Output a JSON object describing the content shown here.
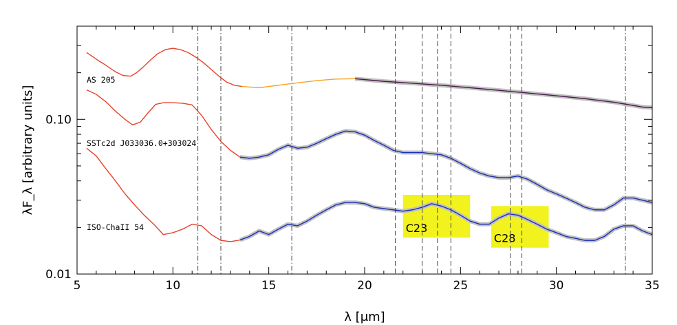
{
  "chart_data": {
    "type": "line",
    "xlabel": "λ [μm]",
    "ylabel": "λF_λ [arbitrary units]",
    "xlim": [
      5,
      35
    ],
    "ylim": [
      0.01,
      0.4
    ],
    "yscale": "log",
    "x_ticks": [
      "5",
      "10",
      "15",
      "20",
      "25",
      "30",
      "35"
    ],
    "y_ticks": [
      "0.01",
      "0.10"
    ],
    "grid": false,
    "series": [
      {
        "name": "AS 205",
        "segments": [
          {
            "color": "#e8412a",
            "x": [
              5.5,
              5.8,
              6.1,
              6.4,
              6.7,
              7.0,
              7.4,
              7.8,
              8.1,
              8.4,
              8.8,
              9.2,
              9.6,
              10.0,
              10.4,
              10.8,
              11.2,
              11.6,
              12.0,
              12.4,
              12.8,
              13.2,
              13.6
            ],
            "y": [
              0.27,
              0.255,
              0.24,
              0.228,
              0.215,
              0.203,
              0.192,
              0.19,
              0.2,
              0.215,
              0.24,
              0.265,
              0.282,
              0.288,
              0.282,
              0.27,
              0.252,
              0.232,
              0.21,
              0.19,
              0.174,
              0.166,
              0.163
            ]
          },
          {
            "color": "#f2a51e",
            "x": [
              13.6,
              14.5,
              15.5,
              16.5,
              17.5,
              18.5,
              19.5
            ],
            "y": [
              0.163,
              0.16,
              0.166,
              0.172,
              0.178,
              0.182,
              0.183
            ]
          },
          {
            "color": "#4b1a4b",
            "x": [
              19.5,
              21,
              22.5,
              24,
              25.5,
              27,
              28.5,
              30,
              31.5,
              33,
              34.5,
              35
            ],
            "y": [
              0.183,
              0.176,
              0.171,
              0.166,
              0.16,
              0.154,
              0.148,
              0.142,
              0.136,
              0.129,
              0.12,
              0.119
            ]
          }
        ]
      },
      {
        "name": "SSTc2d J033036.0+303024",
        "segments": [
          {
            "color": "#e8412a",
            "x": [
              5.5,
              6.0,
              6.5,
              7.0,
              7.5,
              7.9,
              8.3,
              8.7,
              9.1,
              9.5,
              10.0,
              10.5,
              11.0,
              11.5,
              12.0,
              12.5,
              13.0,
              13.5
            ],
            "y": [
              0.155,
              0.145,
              0.13,
              0.113,
              0.1,
              0.092,
              0.096,
              0.11,
              0.125,
              0.128,
              0.128,
              0.127,
              0.124,
              0.106,
              0.086,
              0.072,
              0.063,
              0.057
            ]
          },
          {
            "color": "#1a2fb8",
            "x": [
              13.5,
              14,
              14.5,
              15,
              15.5,
              16,
              16.5,
              17,
              17.5,
              18,
              18.5,
              19,
              19.5,
              20,
              20.5,
              21,
              21.5,
              22,
              22.5,
              23,
              23.5,
              24,
              24.5,
              25,
              25.5,
              26,
              26.5,
              27,
              27.5,
              28,
              28.5,
              29,
              29.5,
              30,
              30.5,
              31,
              31.5,
              32,
              32.5,
              33,
              33.5,
              34,
              34.5,
              35
            ],
            "y": [
              0.057,
              0.056,
              0.057,
              0.059,
              0.064,
              0.068,
              0.065,
              0.066,
              0.07,
              0.075,
              0.08,
              0.084,
              0.083,
              0.079,
              0.073,
              0.068,
              0.063,
              0.061,
              0.061,
              0.061,
              0.06,
              0.059,
              0.056,
              0.052,
              0.048,
              0.045,
              0.043,
              0.042,
              0.042,
              0.043,
              0.041,
              0.038,
              0.035,
              0.033,
              0.031,
              0.029,
              0.027,
              0.026,
              0.026,
              0.028,
              0.031,
              0.031,
              0.03,
              0.029
            ]
          }
        ]
      },
      {
        "name": "ISO-ChaII 54",
        "segments": [
          {
            "color": "#e8412a",
            "x": [
              5.5,
              6.0,
              6.5,
              7.0,
              7.5,
              8.0,
              8.5,
              9.0,
              9.5,
              10.0,
              10.5,
              11.0,
              11.5,
              12.0,
              12.5,
              13.0,
              13.5
            ],
            "y": [
              0.065,
              0.058,
              0.048,
              0.04,
              0.033,
              0.028,
              0.024,
              0.021,
              0.018,
              0.0185,
              0.0195,
              0.021,
              0.0205,
              0.018,
              0.0165,
              0.0162,
              0.0166
            ]
          },
          {
            "color": "#1a2fb8",
            "x": [
              13.5,
              14,
              14.5,
              15,
              15.5,
              16,
              16.5,
              17,
              17.5,
              18,
              18.5,
              19,
              19.5,
              20,
              20.5,
              21,
              21.5,
              22,
              22.5,
              23,
              23.5,
              24,
              24.5,
              25,
              25.5,
              26,
              26.5,
              27,
              27.5,
              28,
              28.5,
              29,
              29.5,
              30,
              30.5,
              31,
              31.5,
              32,
              32.5,
              33,
              33.5,
              34,
              34.5,
              35
            ],
            "y": [
              0.0166,
              0.0175,
              0.019,
              0.018,
              0.0195,
              0.021,
              0.0205,
              0.022,
              0.024,
              0.026,
              0.028,
              0.029,
              0.029,
              0.0285,
              0.027,
              0.0265,
              0.026,
              0.0255,
              0.026,
              0.027,
              0.0285,
              0.0275,
              0.026,
              0.024,
              0.022,
              0.021,
              0.021,
              0.023,
              0.0245,
              0.024,
              0.0225,
              0.021,
              0.0195,
              0.0185,
              0.0175,
              0.017,
              0.0165,
              0.0165,
              0.0175,
              0.0195,
              0.0205,
              0.0205,
              0.019,
              0.018
            ]
          }
        ]
      }
    ],
    "feature_lines": [
      {
        "x": 11.3,
        "style": "dash-dot"
      },
      {
        "x": 12.5,
        "style": "dash-dot"
      },
      {
        "x": 16.2,
        "style": "dash-dot"
      },
      {
        "x": 21.6,
        "style": "dashed"
      },
      {
        "x": 23.0,
        "style": "dashed"
      },
      {
        "x": 23.8,
        "style": "dashed"
      },
      {
        "x": 24.5,
        "style": "dashed"
      },
      {
        "x": 27.6,
        "style": "dashed"
      },
      {
        "x": 28.2,
        "style": "dashed"
      },
      {
        "x": 33.6,
        "style": "dash-dot"
      }
    ],
    "highlight_boxes": [
      {
        "label": "C23",
        "x": [
          22.0,
          25.5
        ],
        "y": [
          0.0172,
          0.0325
        ],
        "color": "#f2f21f"
      },
      {
        "label": "C28",
        "x": [
          26.6,
          29.6
        ],
        "y": [
          0.0148,
          0.0275
        ],
        "color": "#f2f21f"
      }
    ]
  },
  "colors": {
    "irs_blue": "#1a2fb8",
    "model_red": "#e8412a",
    "orange": "#f2a51e",
    "purple": "#4b1a4b",
    "uncertainty_gray": "#c0c0c0",
    "highlight_yellow": "#f2f21f"
  }
}
